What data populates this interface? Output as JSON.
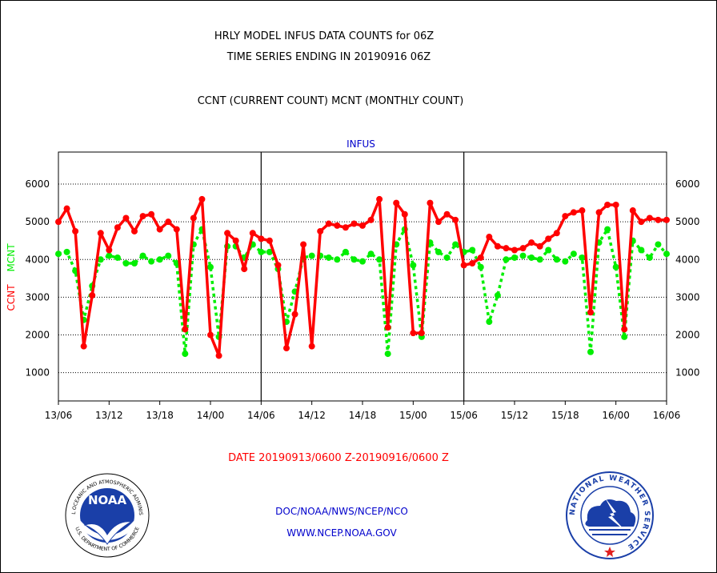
{
  "header": {
    "title_line1": "HRLY MODEL INFUS DATA COUNTS for 06Z",
    "title_line2": "TIME SERIES ENDING IN 20190916 06Z",
    "subtitle": "CCNT (CURRENT COUNT) MCNT (MONTHLY COUNT)"
  },
  "footer": {
    "date_range": "DATE 20190913/0600 Z-20190916/0600 Z",
    "org_line": "DOC/NOAA/NWS/NCEP/NCO",
    "url_line": "WWW.NCEP.NOAA.GOV"
  },
  "logos": {
    "noaa_text": "NOAA",
    "noaa_ring_top": "NATIONAL OCEANIC AND ATMOSPHERIC ADMINISTRATION",
    "noaa_ring_bottom": "U.S. DEPARTMENT OF COMMERCE",
    "nws_ring": "NATIONAL WEATHER SERVICE"
  },
  "colors": {
    "ccnt": "#ff0000",
    "mcnt": "#00ee00",
    "title_blue": "#0000cc",
    "date_red": "#ff0000"
  },
  "chart_data": {
    "type": "line",
    "title": "INFUS",
    "ylabel_ccnt": "CCNT",
    "ylabel_mcnt": "MCNT",
    "x_ticks": [
      "13/06",
      "13/12",
      "13/18",
      "14/00",
      "14/06",
      "14/12",
      "14/18",
      "15/00",
      "15/06",
      "15/12",
      "15/18",
      "16/00",
      "16/06"
    ],
    "y_ticks": [
      1000,
      2000,
      3000,
      4000,
      5000,
      6000
    ],
    "ylim": [
      250,
      6850
    ],
    "xlim": [
      0,
      72
    ],
    "grid": "horizontal-dotted",
    "day_separators_hours": [
      24,
      48
    ],
    "x_hours": [
      0,
      1,
      2,
      3,
      4,
      5,
      6,
      7,
      8,
      9,
      10,
      11,
      12,
      13,
      14,
      15,
      16,
      17,
      18,
      19,
      20,
      21,
      22,
      23,
      24,
      25,
      26,
      27,
      28,
      29,
      30,
      31,
      32,
      33,
      34,
      35,
      36,
      37,
      38,
      39,
      40,
      41,
      42,
      43,
      44,
      45,
      46,
      47,
      48,
      49,
      50,
      51,
      52,
      53,
      54,
      55,
      56,
      57,
      58,
      59,
      60,
      61,
      62,
      63,
      64,
      65,
      66,
      67,
      68,
      69,
      70,
      71,
      72
    ],
    "series": [
      {
        "name": "CCNT",
        "color": "#ff0000",
        "values": [
          5000,
          5350,
          4750,
          1700,
          3050,
          4700,
          4250,
          4850,
          5100,
          4750,
          5150,
          5200,
          4800,
          5000,
          4800,
          2150,
          5100,
          5600,
          2000,
          1450,
          4700,
          4500,
          3750,
          4700,
          4550,
          4500,
          3850,
          1650,
          2550,
          4400,
          1700,
          4750,
          4950,
          4900,
          4850,
          4950,
          4900,
          5050,
          5600,
          2200,
          5500,
          5200,
          2050,
          2050,
          5500,
          5000,
          5200,
          5050,
          3850,
          3900,
          4050,
          4600,
          4350,
          4300,
          4250,
          4300,
          4450,
          4350,
          4550,
          4700,
          5150,
          5250,
          5300,
          2600,
          5250,
          5450,
          5450,
          2150,
          5300,
          5000,
          5100,
          5050,
          5050
        ]
      },
      {
        "name": "MCNT",
        "color": "#00ee00",
        "values": [
          4150,
          4200,
          3700,
          2400,
          3300,
          4000,
          4100,
          4050,
          3900,
          3900,
          4100,
          3950,
          4000,
          4100,
          3900,
          1500,
          4400,
          4800,
          3800,
          1950,
          4350,
          4350,
          4050,
          4400,
          4200,
          4200,
          3750,
          2350,
          3150,
          4050,
          4100,
          4100,
          4050,
          4000,
          4200,
          4000,
          3950,
          4150,
          4000,
          1500,
          4400,
          4800,
          3850,
          1950,
          4450,
          4200,
          4050,
          4400,
          4200,
          4250,
          3800,
          2350,
          3050,
          4000,
          4050,
          4100,
          4050,
          4000,
          4250,
          4000,
          3950,
          4150,
          4050,
          1550,
          4450,
          4800,
          3800,
          1950,
          4500,
          4250,
          4050,
          4400,
          4150
        ]
      }
    ]
  }
}
